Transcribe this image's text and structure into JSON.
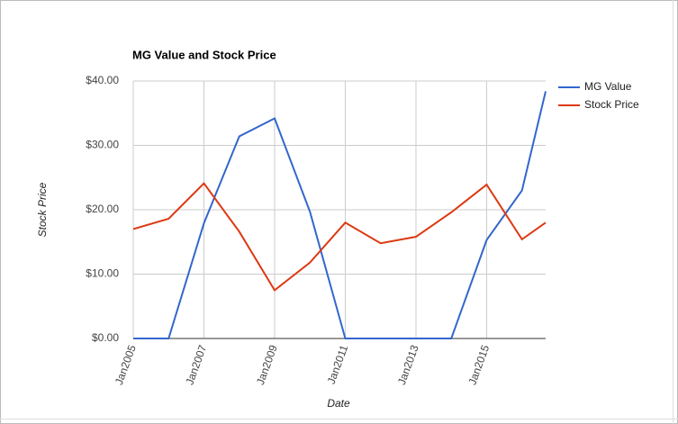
{
  "chart_data": {
    "type": "line",
    "title": "MG Value and Stock Price",
    "x_label": "Date",
    "y_label": "Stock Price",
    "x": [
      2005,
      2006,
      2007,
      2008,
      2009,
      2010,
      2011,
      2012,
      2013,
      2014,
      2015,
      2016,
      2016.67
    ],
    "series": [
      {
        "name": "MG Value",
        "color": "#3366cc",
        "values": [
          0,
          0,
          17.9,
          31.4,
          34.2,
          19.7,
          0,
          0,
          0,
          0,
          15.3,
          23,
          38.4
        ]
      },
      {
        "name": "Stock Price",
        "color": "#dc3912",
        "values": [
          17,
          18.6,
          24.1,
          16.6,
          7.5,
          11.8,
          18,
          14.8,
          15.8,
          19.6,
          23.9,
          15.4,
          18
        ]
      }
    ],
    "xlim": [
      2005,
      2016.67
    ],
    "xticks": [
      {
        "value": 2005,
        "label": "Jan2005"
      },
      {
        "value": 2007,
        "label": "Jan2007"
      },
      {
        "value": 2009,
        "label": "Jan2009"
      },
      {
        "value": 2011,
        "label": "Jan2011"
      },
      {
        "value": 2013,
        "label": "Jan2013"
      },
      {
        "value": 2015,
        "label": "Jan2015"
      }
    ],
    "ylim": [
      0,
      40
    ],
    "yticks": [
      {
        "value": 0,
        "label": "$0.00"
      },
      {
        "value": 10,
        "label": "$10.00"
      },
      {
        "value": 20,
        "label": "$20.00"
      },
      {
        "value": 30,
        "label": "$30.00"
      },
      {
        "value": 40,
        "label": "$40.00"
      }
    ],
    "grid": true,
    "legend": "right"
  }
}
